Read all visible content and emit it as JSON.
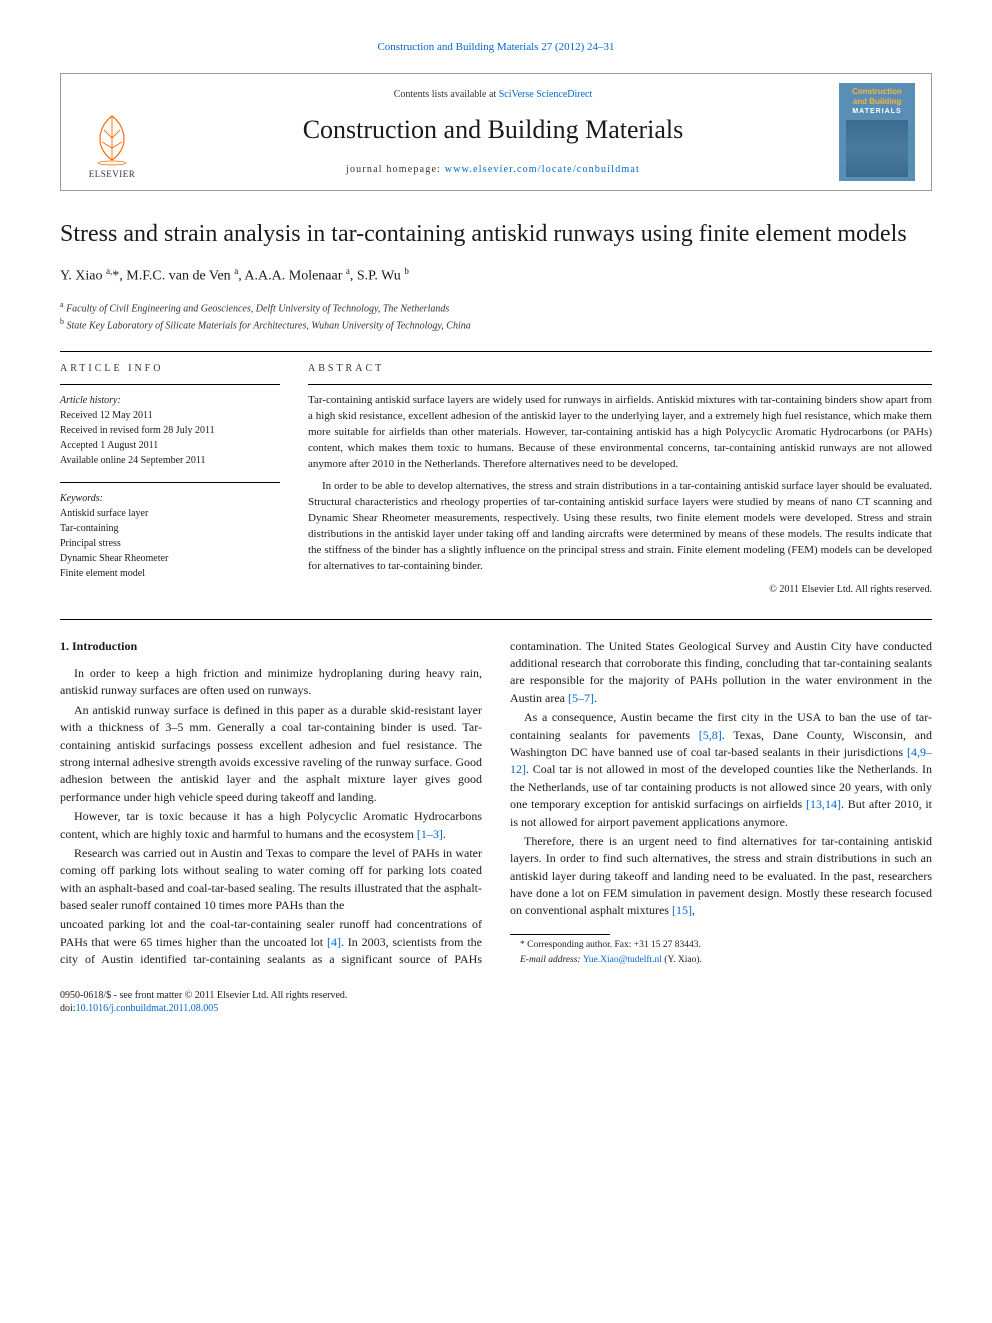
{
  "colors": {
    "link": "#0066cc",
    "text": "#1a1a1a",
    "banner_border": "#999999",
    "cover_bg": "#5a8fb5",
    "cover_title": "#fbb040",
    "cover_sub": "#ffffff",
    "elsevier_orange": "#ff6a00"
  },
  "header": {
    "journal_ref_prefix": "Construction and Building Materials 27 (2012) 24–31",
    "contents_text": "Contents lists available at ",
    "contents_link": "SciVerse ScienceDirect",
    "journal_title": "Construction and Building Materials",
    "homepage_label": "journal homepage: ",
    "homepage_url": "www.elsevier.com/locate/conbuildmat",
    "publisher": "ELSEVIER",
    "cover_title_line1": "Construction",
    "cover_title_line2": "and Building",
    "cover_sub": "MATERIALS"
  },
  "article": {
    "title": "Stress and strain analysis in tar-containing antiskid runways using finite element models",
    "authors_html": "Y. Xiao <sup>a,</sup>*, M.F.C. van de Ven <sup>a</sup>, A.A.A. Molenaar <sup>a</sup>, S.P. Wu <sup>b</sup>",
    "affiliations": [
      {
        "sup": "a",
        "text": "Faculty of Civil Engineering and Geosciences, Delft University of Technology, The Netherlands"
      },
      {
        "sup": "b",
        "text": "State Key Laboratory of Silicate Materials for Architectures, Wuhan University of Technology, China"
      }
    ]
  },
  "info": {
    "label": "ARTICLE INFO",
    "history_head": "Article history:",
    "history": [
      "Received 12 May 2011",
      "Received in revised form 28 July 2011",
      "Accepted 1 August 2011",
      "Available online 24 September 2011"
    ],
    "keywords_head": "Keywords:",
    "keywords": [
      "Antiskid surface layer",
      "Tar-containing",
      "Principal stress",
      "Dynamic Shear Rheometer",
      "Finite element model"
    ]
  },
  "abstract": {
    "label": "ABSTRACT",
    "paragraphs": [
      "Tar-containing antiskid surface layers are widely used for runways in airfields. Antiskid mixtures with tar-containing binders show apart from a high skid resistance, excellent adhesion of the antiskid layer to the underlying layer, and a extremely high fuel resistance, which make them more suitable for airfields than other materials. However, tar-containing antiskid has a high Polycyclic Aromatic Hydrocarbons (or PAHs) content, which makes them toxic to humans. Because of these environmental concerns, tar-containing antiskid runways are not allowed anymore after 2010 in the Netherlands. Therefore alternatives need to be developed.",
      "In order to be able to develop alternatives, the stress and strain distributions in a tar-containing antiskid surface layer should be evaluated. Structural characteristics and rheology properties of tar-containing antiskid surface layers were studied by means of nano CT scanning and Dynamic Shear Rheometer measurements, respectively. Using these results, two finite element models were developed. Stress and strain distributions in the antiskid layer under taking off and landing aircrafts were determined by means of these models. The results indicate that the stiffness of the binder has a slightly influence on the principal stress and strain. Finite element modeling (FEM) models can be developed for alternatives to tar-containing binder."
    ],
    "copyright": "© 2011 Elsevier Ltd. All rights reserved."
  },
  "body": {
    "section_heading": "1. Introduction",
    "paragraphs": [
      "In order to keep a high friction and minimize hydroplaning during heavy rain, antiskid runway surfaces are often used on runways.",
      "An antiskid runway surface is defined in this paper as a durable skid-resistant layer with a thickness of 3–5 mm. Generally a coal tar-containing binder is used. Tar-containing antiskid surfacings possess excellent adhesion and fuel resistance. The strong internal adhesive strength avoids excessive raveling of the runway surface. Good adhesion between the antiskid layer and the asphalt mixture layer gives good performance under high vehicle speed during takeoff and landing.",
      "However, tar is toxic because it has a high Polycyclic Aromatic Hydrocarbons content, which are highly toxic and harmful to humans and the ecosystem <span class=\"cite\">[1–3]</span>.",
      "Research was carried out in Austin and Texas to compare the level of PAHs in water coming off parking lots without sealing to water coming off for parking lots coated with an asphalt-based and coal-tar-based sealing. The results illustrated that the asphalt-based sealer runoff contained 10 times more PAHs than the",
      "uncoated parking lot and the coal-tar-containing sealer runoff had concentrations of PAHs that were 65 times higher than the uncoated lot <span class=\"cite\">[4]</span>. In 2003, scientists from the city of Austin identified tar-containing sealants as a significant source of PAHs contamination. The United States Geological Survey and Austin City have conducted additional research that corroborate this finding, concluding that tar-containing sealants are responsible for the majority of PAHs pollution in the water environment in the Austin area <span class=\"cite\">[5–7]</span>.",
      "As a consequence, Austin became the first city in the USA to ban the use of tar-containing sealants for pavements <span class=\"cite\">[5,8]</span>. Texas, Dane County, Wisconsin, and Washington DC have banned use of coal tar-based sealants in their jurisdictions <span class=\"cite\">[4,9–12]</span>. Coal tar is not allowed in most of the developed counties like the Netherlands. In the Netherlands, use of tar containing products is not allowed since 20 years, with only one temporary exception for antiskid surfacings on airfields <span class=\"cite\">[13,14]</span>. But after 2010, it is not allowed for airport pavement applications anymore.",
      "Therefore, there is an urgent need to find alternatives for tar-containing antiskid layers. In order to find such alternatives, the stress and strain distributions in such an antiskid layer during takeoff and landing need to be evaluated. In the past, researchers have done a lot on FEM simulation in pavement design. Mostly these research focused on conventional asphalt mixtures <span class=\"cite\">[15]</span>,"
    ]
  },
  "footnotes": {
    "corresponding": "* Corresponding author. Fax: +31 15 27 83443.",
    "email_label": "E-mail address: ",
    "email": "Yue.Xiao@tudelft.nl",
    "email_author": " (Y. Xiao)."
  },
  "footer": {
    "line1": "0950-0618/$ - see front matter © 2011 Elsevier Ltd. All rights reserved.",
    "doi_label": "doi:",
    "doi": "10.1016/j.conbuildmat.2011.08.005"
  }
}
